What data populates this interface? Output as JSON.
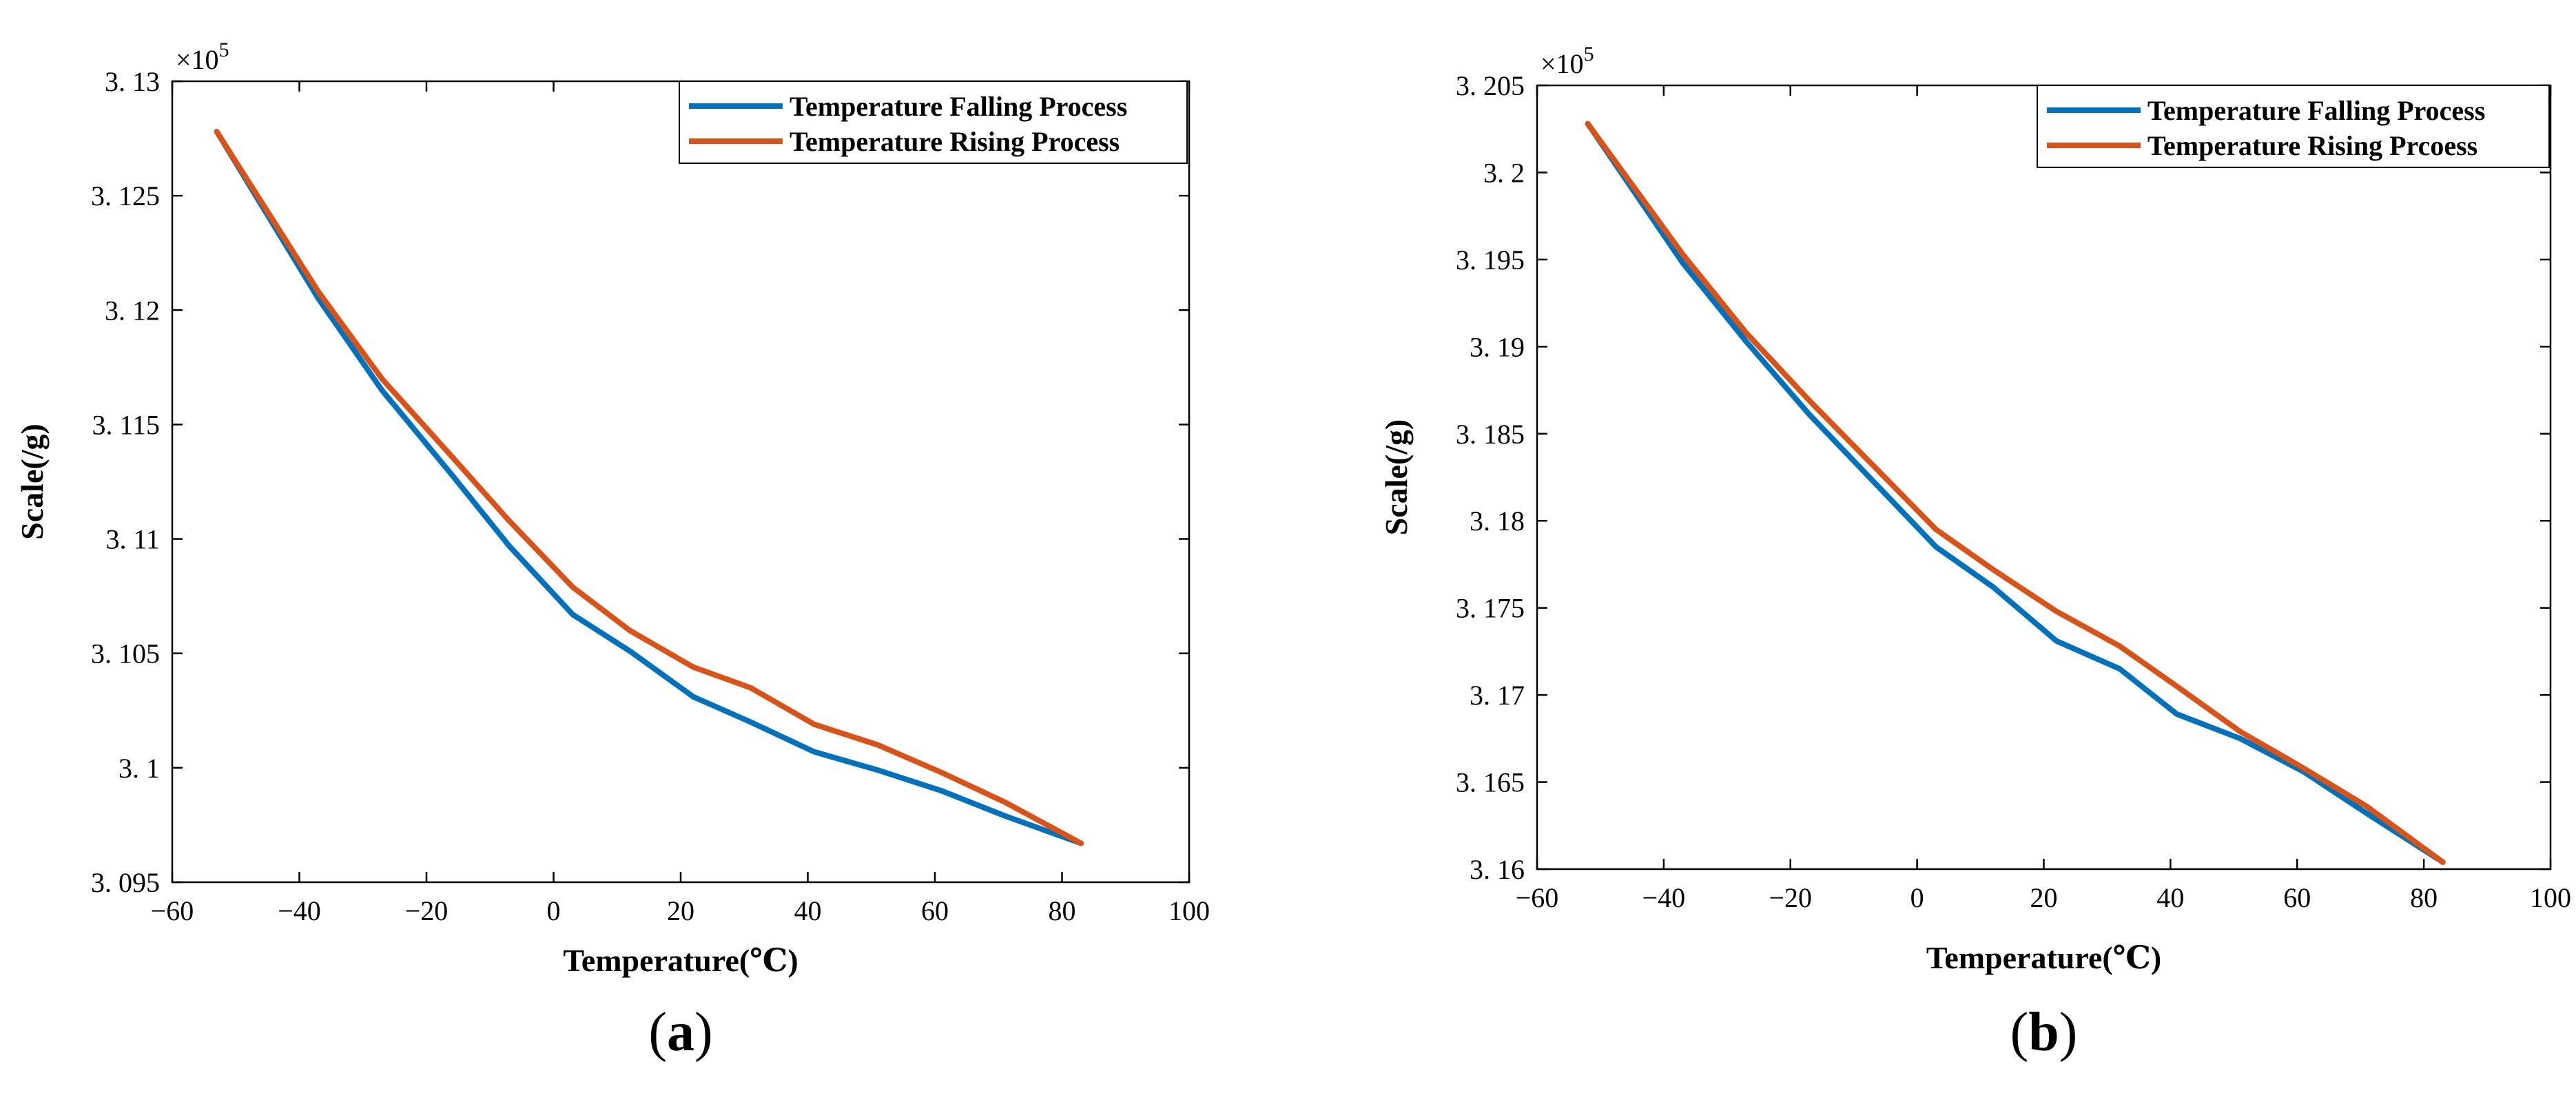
{
  "chart_data": [
    {
      "type": "line",
      "panel_label": "a",
      "title": "",
      "xlabel": "Temperature(℃)",
      "ylabel": "Scale(/g)",
      "y_multiplier": "×10",
      "y_exponent": "5",
      "xlim": [
        -60,
        100
      ],
      "ylim": [
        3.095,
        3.13
      ],
      "xticks": [
        -60,
        -40,
        -20,
        0,
        20,
        40,
        60,
        80,
        100
      ],
      "xtick_labels": [
        "−60",
        "−40",
        "−20",
        "0",
        "20",
        "40",
        "60",
        "80",
        "100"
      ],
      "yticks": [
        3.095,
        3.1,
        3.105,
        3.11,
        3.115,
        3.12,
        3.125,
        3.13
      ],
      "ytick_labels": [
        "3. 095",
        "3. 1",
        "3. 105",
        "3. 11",
        "3. 115",
        "3. 12",
        "3. 125",
        "3. 13"
      ],
      "grid": false,
      "legend_position": "top-right",
      "series": [
        {
          "name": "Temperature Falling Process",
          "color": "#0072BD",
          "x": [
            -53,
            -37,
            -27,
            -16,
            -7,
            3,
            12,
            22,
            31,
            41,
            51,
            61,
            71,
            83
          ],
          "y": [
            3.1278,
            3.1205,
            3.1165,
            3.1128,
            3.1097,
            3.1067,
            3.1051,
            3.1031,
            3.102,
            3.1007,
            3.0999,
            3.099,
            3.0979,
            3.0967
          ]
        },
        {
          "name": "Temperature Rising Process",
          "color": "#D95319",
          "x": [
            -53,
            -37,
            -27,
            -16,
            -7,
            3,
            12,
            22,
            31,
            41,
            51,
            61,
            71,
            83
          ],
          "y": [
            3.1278,
            3.1208,
            3.117,
            3.1136,
            3.1108,
            3.1079,
            3.106,
            3.1044,
            3.1035,
            3.1019,
            3.101,
            3.0998,
            3.0985,
            3.0967
          ]
        }
      ]
    },
    {
      "type": "line",
      "panel_label": "b",
      "title": "",
      "xlabel": "Temperature(℃)",
      "ylabel": "Scale(/g)",
      "y_multiplier": "×10",
      "y_exponent": "5",
      "xlim": [
        -60,
        100
      ],
      "ylim": [
        3.16,
        3.205
      ],
      "xticks": [
        -60,
        -40,
        -20,
        0,
        20,
        40,
        60,
        80,
        100
      ],
      "xtick_labels": [
        "−60",
        "−40",
        "−20",
        "0",
        "20",
        "40",
        "60",
        "80",
        "100"
      ],
      "yticks": [
        3.16,
        3.165,
        3.17,
        3.175,
        3.18,
        3.185,
        3.19,
        3.195,
        3.2,
        3.205
      ],
      "ytick_labels": [
        "3. 16",
        "3. 165",
        "3. 17",
        "3. 175",
        "3. 18",
        "3. 185",
        "3. 19",
        "3. 195",
        "3. 2",
        "3. 205"
      ],
      "grid": false,
      "legend_position": "top-right",
      "series": [
        {
          "name": "Temperature Falling Process",
          "color": "#0072BD",
          "x": [
            -52,
            -37,
            -27,
            -17,
            -7,
            3,
            12,
            22,
            32,
            41,
            51,
            61,
            71,
            83
          ],
          "y": [
            3.2028,
            3.1948,
            3.1903,
            3.1861,
            3.1823,
            3.1785,
            3.1762,
            3.1731,
            3.1715,
            3.1689,
            3.1675,
            3.1656,
            3.1632,
            3.1604
          ]
        },
        {
          "name": "Temperature Rising Prcoess",
          "color": "#D95319",
          "x": [
            -52,
            -37,
            -27,
            -17,
            -7,
            3,
            12,
            22,
            32,
            41,
            51,
            61,
            71,
            83
          ],
          "y": [
            3.2028,
            3.1953,
            3.1908,
            3.1869,
            3.1832,
            3.1795,
            3.1772,
            3.1748,
            3.1728,
            3.1705,
            3.1679,
            3.1658,
            3.1636,
            3.1604
          ]
        }
      ]
    }
  ]
}
